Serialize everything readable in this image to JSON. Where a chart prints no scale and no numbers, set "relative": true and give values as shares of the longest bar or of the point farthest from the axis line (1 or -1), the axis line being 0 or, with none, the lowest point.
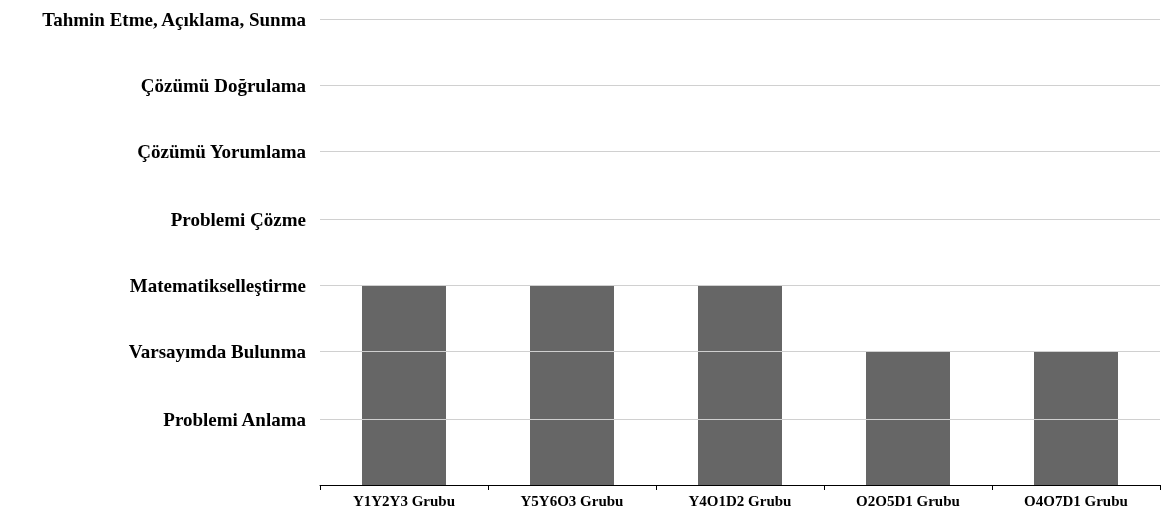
{
  "chart_data": {
    "type": "bar",
    "categories": [
      "Y1Y2Y3 Grubu",
      "Y5Y6O3 Grubu",
      "Y4O1D2 Grubu",
      "O2O5D1 Grubu",
      "O4O7D1 Grubu"
    ],
    "values": [
      1,
      1,
      1,
      0.6667,
      0.6667
    ],
    "color": "#666666",
    "relative": true,
    "ref_lines": [
      {
        "axis": "y",
        "value": 0.3333,
        "label": "Problemi Anlama",
        "color": "#d0d0d0"
      },
      {
        "axis": "y",
        "value": 0.6667,
        "label": "Varsayımda Bulunma",
        "color": "#d0d0d0"
      },
      {
        "axis": "y",
        "value": 1,
        "label": "Matematikselleştirme",
        "color": "#d0d0d0"
      },
      {
        "axis": "y",
        "value": 1.3333,
        "label": "Problemi Çözme",
        "color": "#d0d0d0"
      },
      {
        "axis": "y",
        "value": 1.6667,
        "label": "Çözümü Yorumlama",
        "color": "#d0d0d0"
      },
      {
        "axis": "y",
        "value": 2,
        "label": "Çözümü Doğrulama",
        "color": "#d0d0d0"
      },
      {
        "axis": "y",
        "value": 2.3333,
        "label": "Tahmin Etme, Açıklama, Sunma",
        "color": "#d0d0d0"
      }
    ]
  }
}
